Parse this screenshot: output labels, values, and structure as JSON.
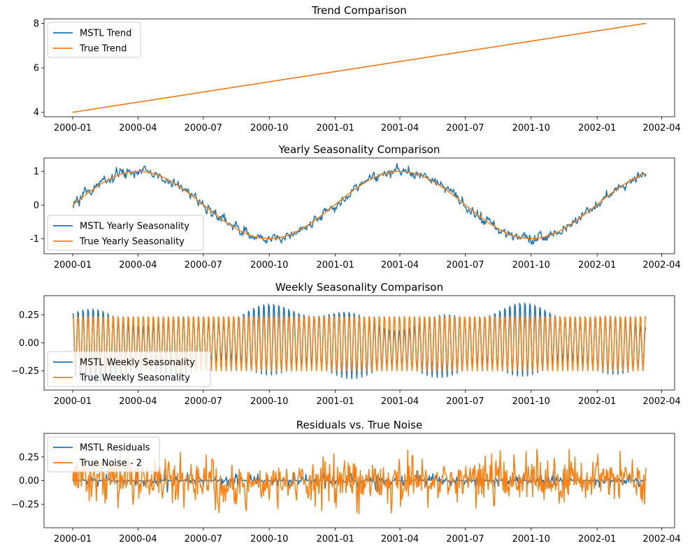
{
  "colors": {
    "mstl": "#1f77b4",
    "truth": "#ff7f0e"
  },
  "x_ticks": [
    "2000-01",
    "2000-04",
    "2000-07",
    "2000-10",
    "2001-01",
    "2001-04",
    "2001-07",
    "2001-10",
    "2002-01",
    "2002-04"
  ],
  "chart_data": [
    {
      "type": "line",
      "title": "Trend Comparison",
      "x_range": [
        "1999-11-22",
        "2002-04-19"
      ],
      "x_data_range": [
        "2000-01-01",
        "2002-03-10"
      ],
      "ylim": [
        3.8,
        8.2
      ],
      "y_ticks": [
        4,
        6,
        8
      ],
      "legend_position": "top-left",
      "series": [
        {
          "name": "MSTL Trend",
          "shape": "linear",
          "start": 4.0,
          "end": 8.0
        },
        {
          "name": "True Trend",
          "shape": "linear",
          "start": 4.0,
          "end": 8.0
        }
      ]
    },
    {
      "type": "line",
      "title": "Yearly Seasonality Comparison",
      "x_range": [
        "1999-11-22",
        "2002-04-19"
      ],
      "x_data_range": [
        "2000-01-01",
        "2002-03-10"
      ],
      "ylim": [
        -1.45,
        1.4
      ],
      "y_ticks": [
        1,
        0,
        -1
      ],
      "legend_position": "bottom-left",
      "series": [
        {
          "name": "MSTL Yearly Seasonality",
          "shape": "sine_yearly_noisy",
          "amplitude": 1.0,
          "noise": 0.1
        },
        {
          "name": "True Yearly Seasonality",
          "shape": "sine_yearly",
          "amplitude": 1.0
        }
      ]
    },
    {
      "type": "line",
      "title": "Weekly Seasonality Comparison",
      "x_range": [
        "1999-11-22",
        "2002-04-19"
      ],
      "x_data_range": [
        "2000-01-01",
        "2002-03-10"
      ],
      "ylim": [
        -0.42,
        0.42
      ],
      "y_ticks": [
        0.25,
        0.0,
        -0.25
      ],
      "y_tick_labels": [
        "0.25",
        "0.00",
        "−0.25"
      ],
      "legend_position": "bottom-left",
      "series": [
        {
          "name": "MSTL Weekly Seasonality",
          "shape": "sine_weekly_modulated",
          "amplitude": 0.3
        },
        {
          "name": "True Weekly Seasonality",
          "shape": "sine_weekly",
          "amplitude": 0.25
        }
      ]
    },
    {
      "type": "line",
      "title": "Residuals vs. True Noise",
      "x_range": [
        "1999-11-22",
        "2002-04-19"
      ],
      "x_data_range": [
        "2000-01-01",
        "2002-03-10"
      ],
      "ylim": [
        -0.5,
        0.5
      ],
      "y_ticks": [
        0.25,
        0.0,
        -0.25
      ],
      "y_tick_labels": [
        "0.25",
        "0.00",
        "−0.25"
      ],
      "legend_position": "top-left",
      "series": [
        {
          "name": "MSTL Residuals",
          "shape": "noise_small",
          "sd": 0.04
        },
        {
          "name": "True Noise - 2",
          "shape": "noise",
          "sd": 0.12
        }
      ]
    }
  ]
}
